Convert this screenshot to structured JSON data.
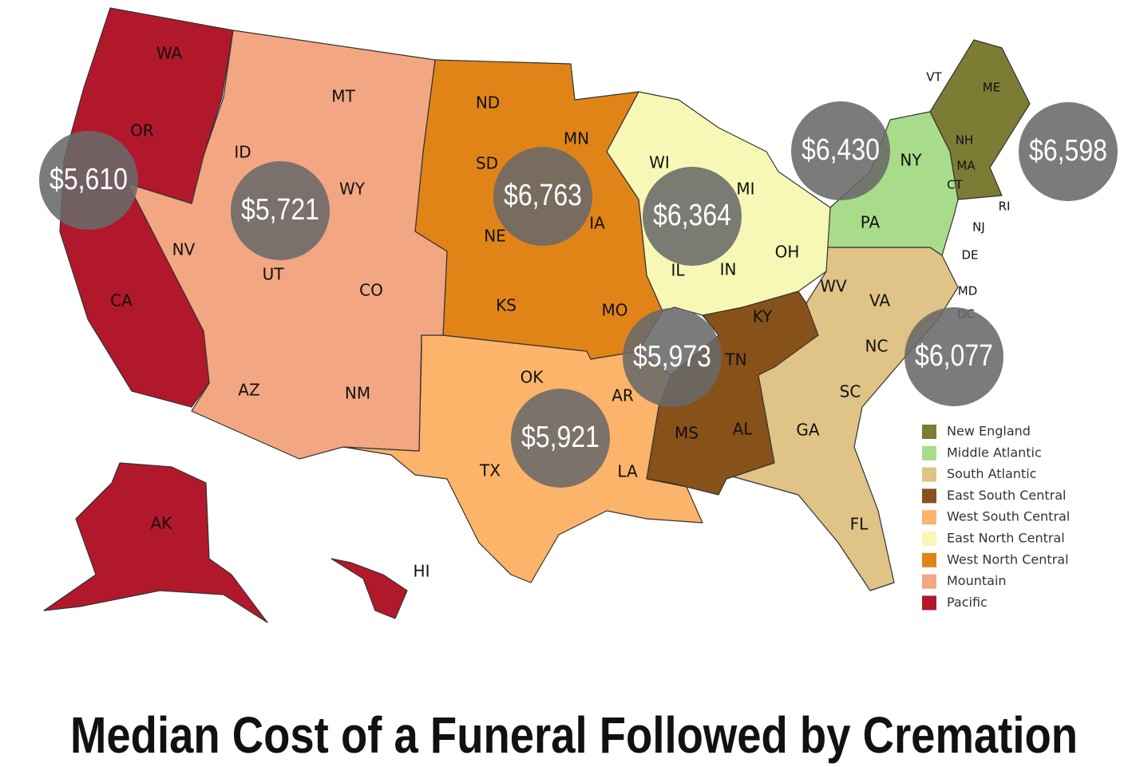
{
  "map": {
    "title": "Median Cost of a Funeral Followed by Cremation",
    "regions": [
      {
        "name": "New England",
        "color": "#7c7c35",
        "states": [
          "ME",
          "VT",
          "NH",
          "MA",
          "CT",
          "RI"
        ],
        "cost": {
          "value": 6598,
          "label": "$6,598"
        }
      },
      {
        "name": "Middle Atlantic",
        "color": "#a8dc8a",
        "states": [
          "NY",
          "PA",
          "NJ"
        ],
        "cost": {
          "value": 6430,
          "label": "$6,430"
        }
      },
      {
        "name": "South Atlantic",
        "color": "#e0c386",
        "states": [
          "WV",
          "VA",
          "DE",
          "MD",
          "DC",
          "NC",
          "SC",
          "GA",
          "FL"
        ],
        "cost": {
          "value": 6077,
          "label": "$6,077"
        }
      },
      {
        "name": "East South Central",
        "color": "#87511a",
        "states": [
          "KY",
          "TN",
          "MS",
          "AL"
        ],
        "cost": {
          "value": 5973,
          "label": "$5,973"
        }
      },
      {
        "name": "West South Central",
        "color": "#fbb46a",
        "states": [
          "OK",
          "AR",
          "TX",
          "LA"
        ],
        "cost": {
          "value": 5921,
          "label": "$5,921"
        }
      },
      {
        "name": "East North Central",
        "color": "#f7f8b6",
        "states": [
          "WI",
          "MI",
          "IL",
          "IN",
          "OH"
        ],
        "cost": {
          "value": 6364,
          "label": "$6,364"
        }
      },
      {
        "name": "West North Central",
        "color": "#e08418",
        "states": [
          "ND",
          "SD",
          "MN",
          "NE",
          "IA",
          "KS",
          "MO"
        ],
        "cost": {
          "value": 6763,
          "label": "$6,763"
        }
      },
      {
        "name": "Mountain",
        "color": "#f2a682",
        "states": [
          "MT",
          "ID",
          "WY",
          "NV",
          "UT",
          "CO",
          "AZ",
          "NM"
        ],
        "cost": {
          "value": 5721,
          "label": "$5,721"
        }
      },
      {
        "name": "Pacific",
        "color": "#b2182b",
        "states": [
          "WA",
          "OR",
          "CA",
          "AK",
          "HI"
        ],
        "cost": {
          "value": 5610,
          "label": "$5,610"
        }
      }
    ]
  }
}
